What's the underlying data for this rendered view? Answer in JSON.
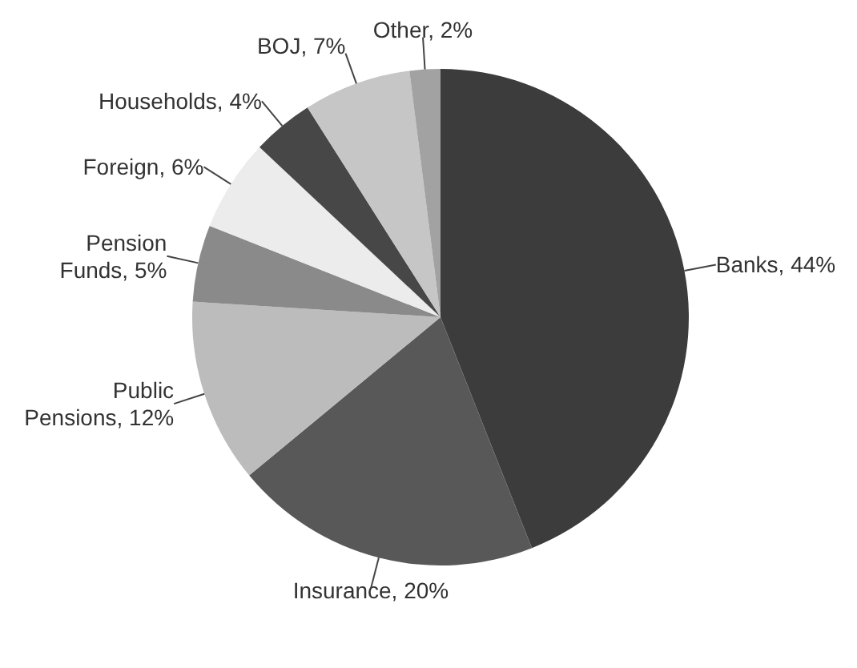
{
  "chart_data": {
    "type": "pie",
    "categories": [
      "Banks",
      "Insurance",
      "Public Pensions",
      "Pension Funds",
      "Foreign",
      "Households",
      "BOJ",
      "Other"
    ],
    "values": [
      44,
      20,
      12,
      5,
      6,
      4,
      7,
      2
    ],
    "value_labels": [
      "44%",
      "20%",
      "12%",
      "5%",
      "6%",
      "4%",
      "7%",
      "2%"
    ],
    "colors": [
      "#3c3c3c",
      "#585858",
      "#bcbcbc",
      "#8a8a8a",
      "#ececec",
      "#474747",
      "#c6c6c6",
      "#a2a2a2"
    ]
  }
}
